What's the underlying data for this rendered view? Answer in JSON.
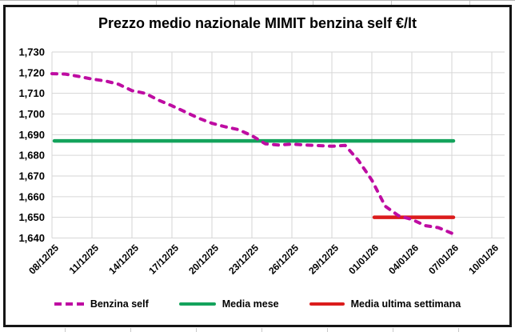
{
  "chart": {
    "title": "Prezzo medio nazionale MIMIT benzina self €/lt"
  },
  "chart_data": {
    "type": "line",
    "title": "Prezzo medio nazionale MIMIT benzina self €/lt",
    "xlabel": "",
    "ylabel": "",
    "ylim": [
      1640,
      1730
    ],
    "y_step": 10,
    "grid": true,
    "legend_position": "bottom",
    "y_tick_labels": [
      "1,730",
      "1,720",
      "1,710",
      "1,700",
      "1,690",
      "1,680",
      "1,670",
      "1,660",
      "1,650",
      "1,640"
    ],
    "x_tick_labels": [
      "08/12/25",
      "11/12/25",
      "14/12/25",
      "17/12/25",
      "20/12/25",
      "23/12/25",
      "26/12/25",
      "29/12/25",
      "01/01/26",
      "04/01/26",
      "07/01/26",
      "10/01/26"
    ],
    "x_days_per_tick": 3,
    "dates": [
      "08/12/25",
      "09/12/25",
      "10/12/25",
      "11/12/25",
      "12/12/25",
      "13/12/25",
      "14/12/25",
      "15/12/25",
      "16/12/25",
      "17/12/25",
      "18/12/25",
      "19/12/25",
      "20/12/25",
      "21/12/25",
      "22/12/25",
      "23/12/25",
      "24/12/25",
      "25/12/25",
      "26/12/25",
      "27/12/25",
      "28/12/25",
      "29/12/25",
      "30/12/25",
      "31/12/25",
      "01/01/26",
      "02/01/26",
      "03/01/26",
      "04/01/26",
      "05/01/26",
      "06/01/26",
      "07/01/26"
    ],
    "series": [
      {
        "name": "Benzina self",
        "style": "dashed",
        "color": "#BE0CA2",
        "values": [
          1719.5,
          1719.3,
          1718.2,
          1716.9,
          1716.0,
          1714.4,
          1711.3,
          1710.0,
          1706.7,
          1704.0,
          1701.0,
          1698.0,
          1695.5,
          1693.8,
          1692.4,
          1689.5,
          1685.6,
          1685.0,
          1685.4,
          1685.0,
          1684.7,
          1684.4,
          1684.8,
          1677.5,
          1668.0,
          1655.4,
          1650.8,
          1649.0,
          1646.0,
          1645.0,
          1642.3
        ]
      },
      {
        "name": "Media mese",
        "style": "solid",
        "color": "#14A35C",
        "value": 1687,
        "span_day_indices": [
          0,
          30
        ]
      },
      {
        "name": "Media ultima settimana",
        "style": "solid",
        "color": "#DB1C1C",
        "value": 1650,
        "span_day_indices": [
          24,
          30
        ]
      }
    ],
    "gridline_color": "#D6D6D6"
  }
}
